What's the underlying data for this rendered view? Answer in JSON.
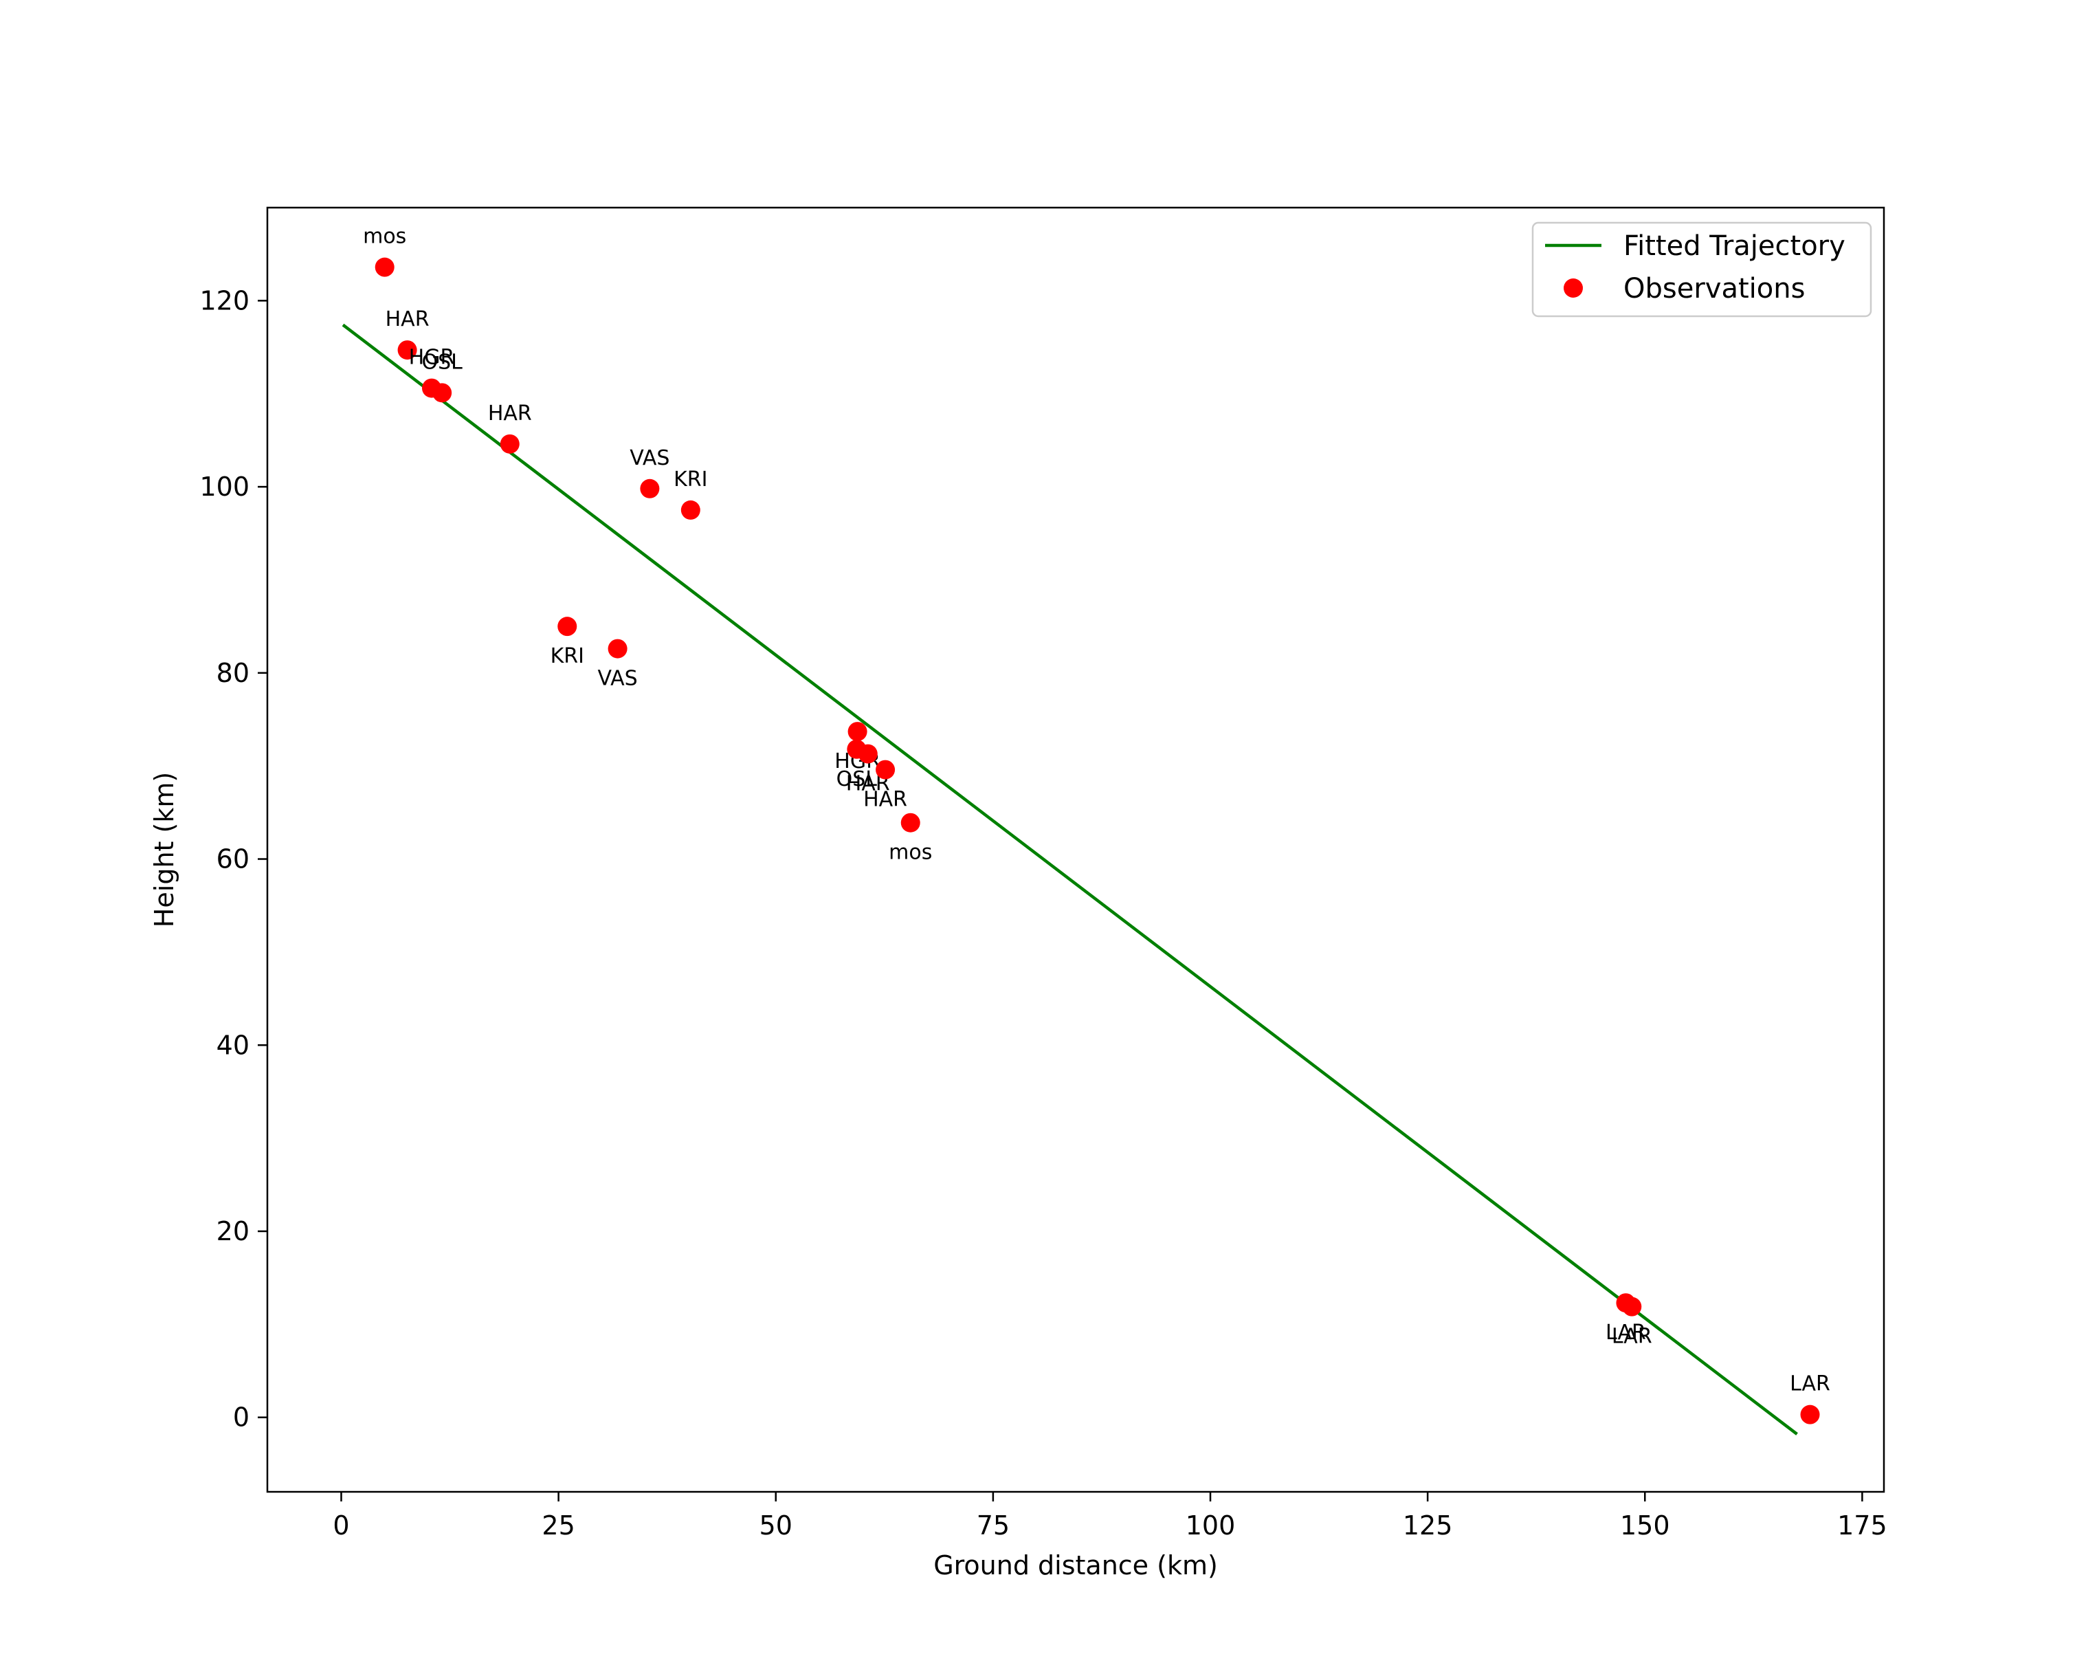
{
  "chart_data": {
    "type": "scatter",
    "title": "",
    "xlabel": "Ground distance (km)",
    "ylabel": "Height (km)",
    "xlim": [
      -8.5,
      177.5
    ],
    "ylim": [
      -8,
      130
    ],
    "xticks": [
      0,
      25,
      50,
      75,
      100,
      125,
      150,
      175
    ],
    "yticks": [
      0,
      20,
      40,
      60,
      80,
      100,
      120
    ],
    "grid": false,
    "legend_position": "top-right",
    "series": [
      {
        "name": "Fitted Trajectory",
        "kind": "line",
        "color": "#008000",
        "x": [
          0.2,
          167.5
        ],
        "y": [
          117.4,
          -1.8
        ]
      },
      {
        "name": "Observations",
        "kind": "scatter",
        "color": "#ff0000",
        "points": [
          {
            "label": "mos",
            "x": 5.0,
            "y": 123.6,
            "label_pos": "above"
          },
          {
            "label": "HAR",
            "x": 7.6,
            "y": 114.7,
            "label_pos": "above"
          },
          {
            "label": "HGR",
            "x": 10.4,
            "y": 110.6,
            "label_pos": "above"
          },
          {
            "label": "OSL",
            "x": 11.6,
            "y": 110.1,
            "label_pos": "above"
          },
          {
            "label": "HAR",
            "x": 19.4,
            "y": 104.6,
            "label_pos": "above"
          },
          {
            "label": "VAS",
            "x": 35.5,
            "y": 99.8,
            "label_pos": "above"
          },
          {
            "label": "KRI",
            "x": 40.2,
            "y": 97.5,
            "label_pos": "above"
          },
          {
            "label": "KRI",
            "x": 26.0,
            "y": 85.0,
            "label_pos": "below"
          },
          {
            "label": "VAS",
            "x": 31.8,
            "y": 82.6,
            "label_pos": "below"
          },
          {
            "label": "HGR",
            "x": 59.4,
            "y": 73.7,
            "label_pos": "below"
          },
          {
            "label": "OSL",
            "x": 59.3,
            "y": 71.8,
            "label_pos": "below"
          },
          {
            "label": "HAR",
            "x": 60.6,
            "y": 71.3,
            "label_pos": "below"
          },
          {
            "label": "HAR",
            "x": 62.6,
            "y": 69.6,
            "label_pos": "below"
          },
          {
            "label": "mos",
            "x": 65.5,
            "y": 63.9,
            "label_pos": "below"
          },
          {
            "label": "LAR",
            "x": 147.8,
            "y": 12.3,
            "label_pos": "below"
          },
          {
            "label": "LAR",
            "x": 148.5,
            "y": 11.9,
            "label_pos": "below"
          },
          {
            "label": "LAR",
            "x": 169.0,
            "y": 0.3,
            "label_pos": "above"
          }
        ]
      }
    ]
  }
}
